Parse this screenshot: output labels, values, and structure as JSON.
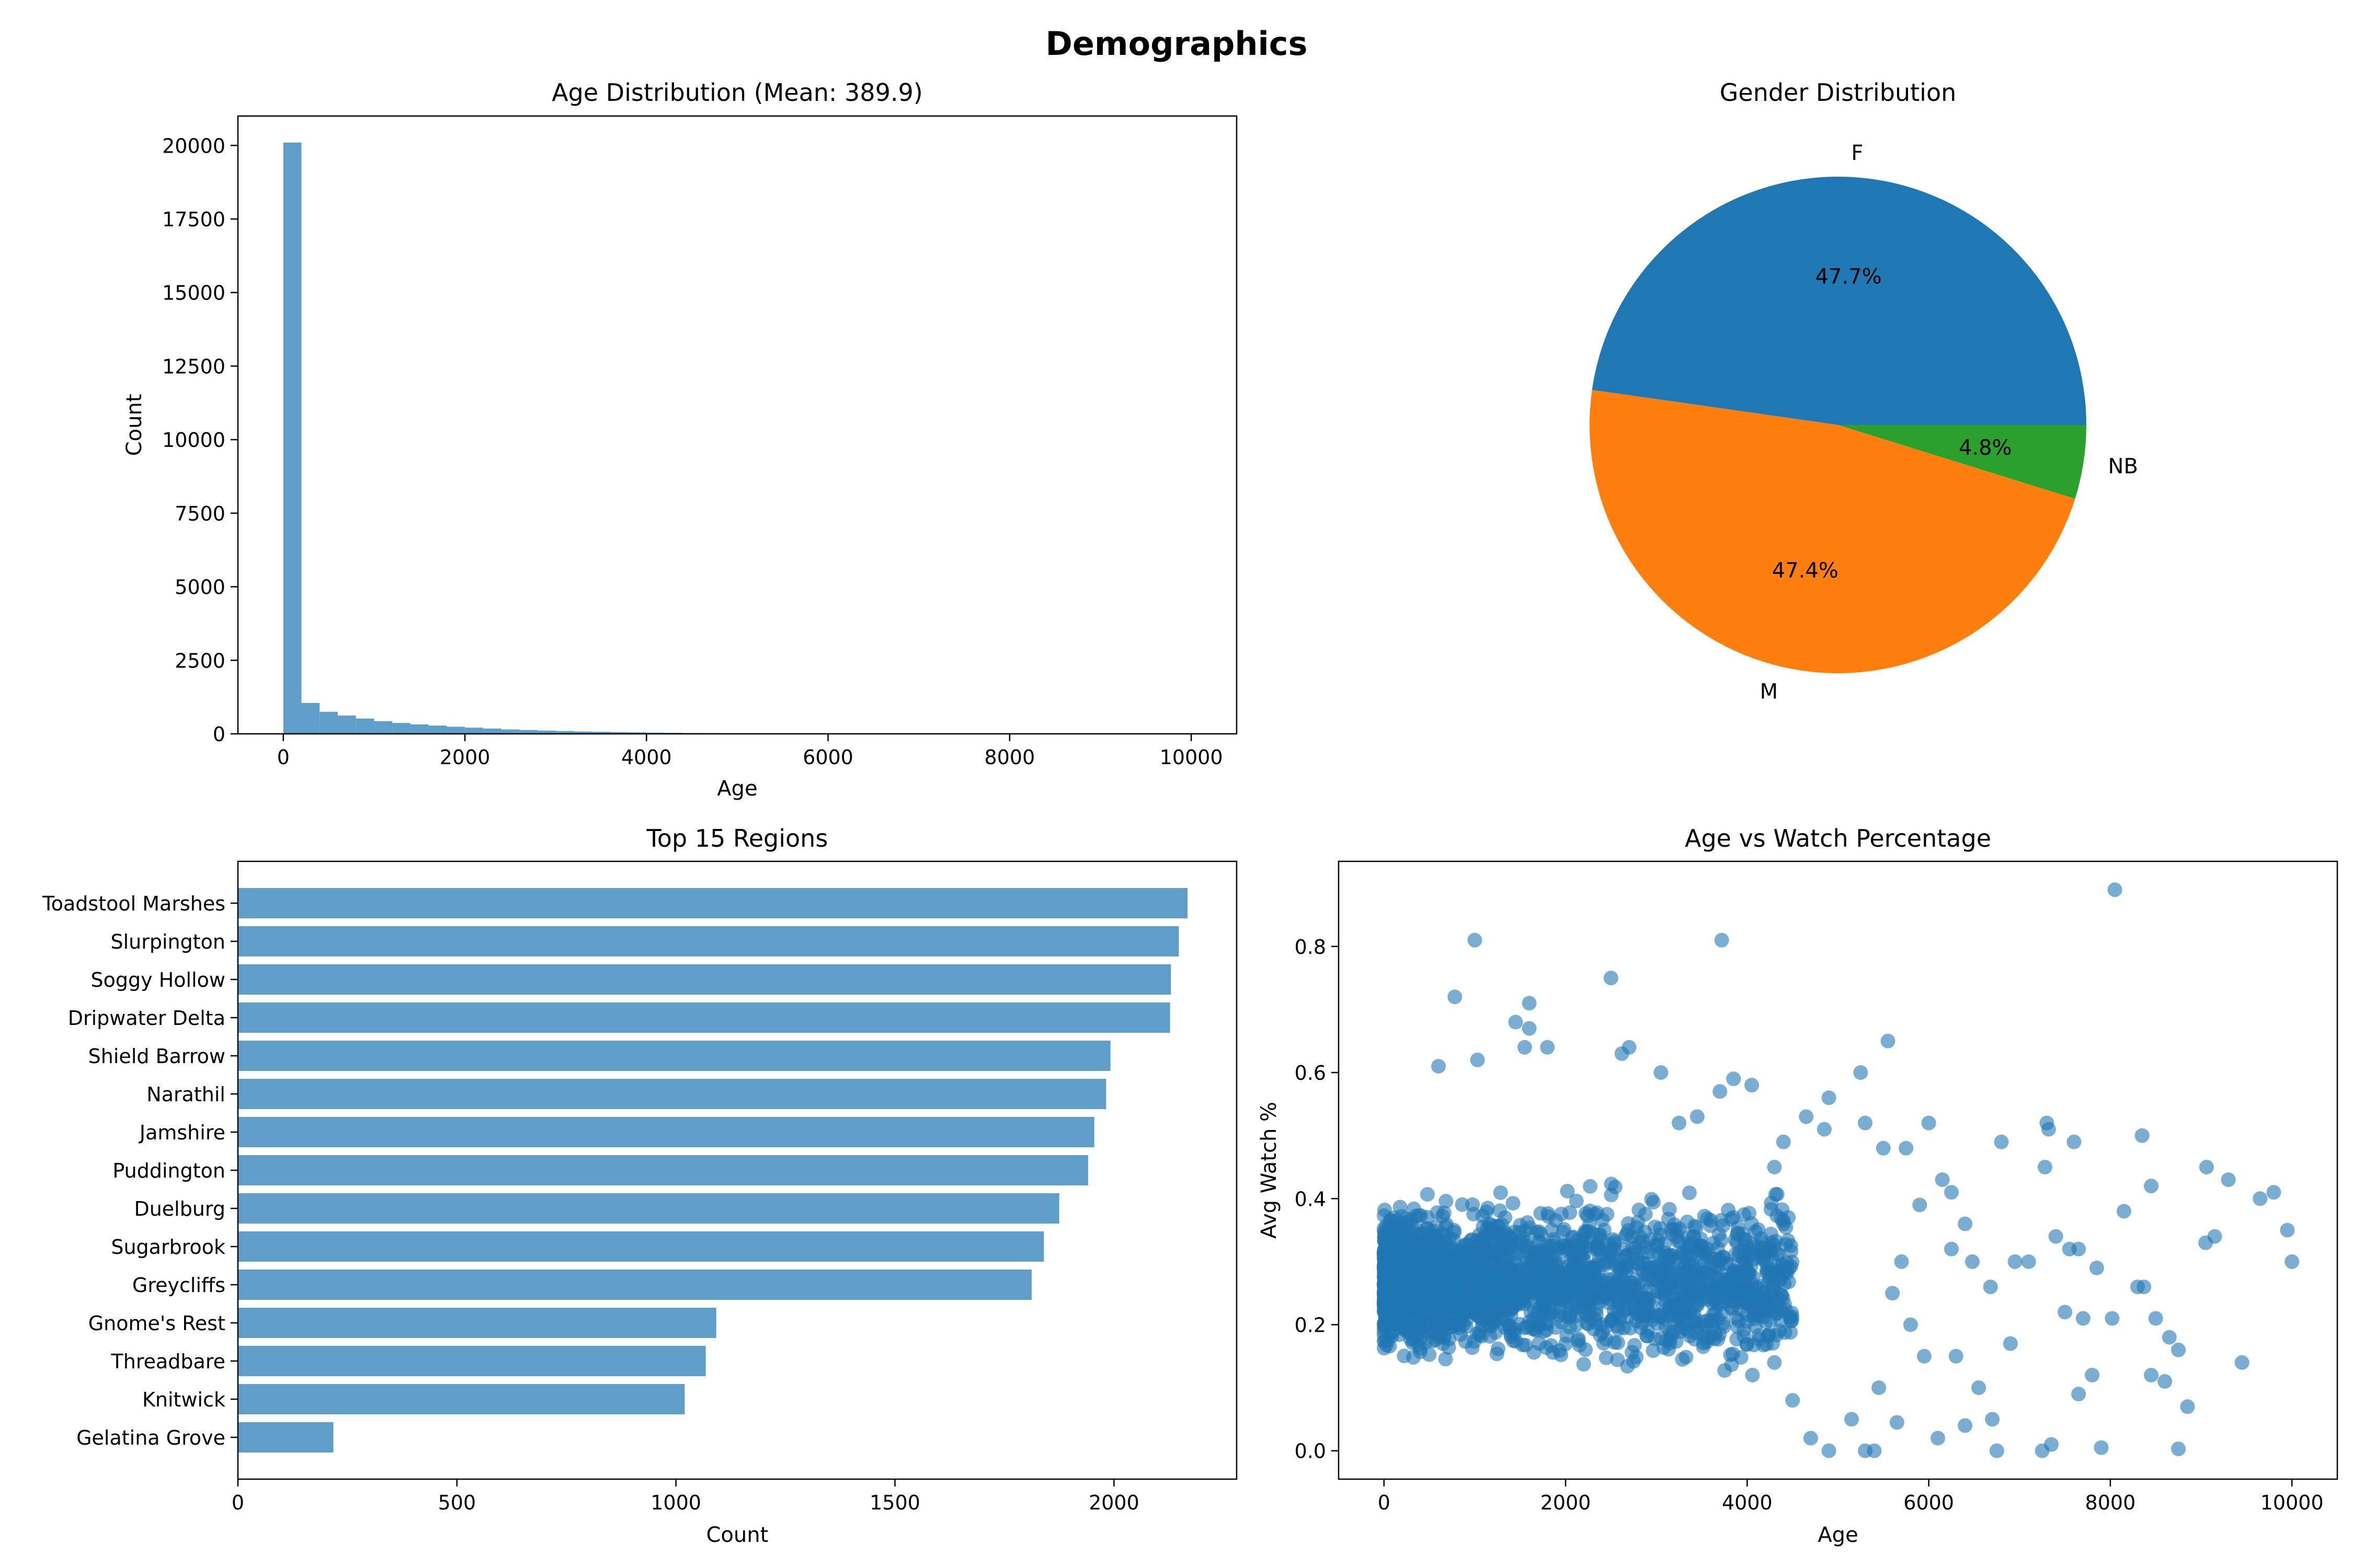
{
  "figure": {
    "title": "Demographics"
  },
  "chart_data": [
    {
      "type": "bar",
      "subtype": "histogram",
      "title": "Age Distribution (Mean: 389.9)",
      "xlabel": "Age",
      "ylabel": "Count",
      "xlim": [
        -500,
        10500
      ],
      "ylim": [
        0,
        21000
      ],
      "xticks": [
        0,
        2000,
        4000,
        6000,
        8000,
        10000
      ],
      "yticks": [
        0,
        2500,
        5000,
        7500,
        10000,
        12500,
        15000,
        17500,
        20000
      ],
      "bin_width": 200,
      "bin_start": 0,
      "values": [
        20100,
        1050,
        750,
        620,
        520,
        430,
        370,
        320,
        280,
        240,
        210,
        180,
        150,
        130,
        110,
        95,
        80,
        70,
        60,
        50,
        40,
        34,
        28,
        24,
        20,
        16,
        14,
        12,
        10,
        9,
        8,
        7,
        6,
        5,
        5,
        4,
        4,
        3,
        3,
        3,
        2,
        2,
        2,
        2,
        1,
        1,
        1,
        1,
        1,
        1
      ],
      "color": "#5f9ec9"
    },
    {
      "type": "pie",
      "title": "Gender Distribution",
      "labels": [
        "F",
        "M",
        "NB"
      ],
      "values": [
        47.7,
        47.4,
        4.8
      ],
      "pct_labels": [
        "47.7%",
        "47.4%",
        "4.8%"
      ],
      "colors": [
        "#1f77b4",
        "#ff7f0e",
        "#2ca02c"
      ]
    },
    {
      "type": "bar",
      "orientation": "horizontal",
      "title": "Top 15 Regions",
      "xlabel": "Count",
      "ylabel": "",
      "xlim": [
        0,
        2280
      ],
      "xticks": [
        0,
        500,
        1000,
        1500,
        2000
      ],
      "categories": [
        "Toadstool Marshes",
        "Slurpington",
        "Soggy Hollow",
        "Dripwater Delta",
        "Shield Barrow",
        "Narathil",
        "Jamshire",
        "Puddington",
        "Duelburg",
        "Sugarbrook",
        "Greycliffs",
        "Gnome's Rest",
        "Threadbare",
        "Knitwick",
        "Gelatina Grove"
      ],
      "values": [
        2168,
        2148,
        2130,
        2128,
        1992,
        1982,
        1955,
        1941,
        1875,
        1840,
        1812,
        1092,
        1068,
        1020,
        218
      ],
      "color": "#5f9ec9"
    },
    {
      "type": "scatter",
      "title": "Age vs Watch Percentage",
      "xlabel": "Age",
      "ylabel": "Avg Watch %",
      "xlim": [
        -500,
        10500
      ],
      "ylim": [
        -0.045,
        0.935
      ],
      "xticks": [
        0,
        2000,
        4000,
        6000,
        8000,
        10000
      ],
      "yticks": [
        0.0,
        0.2,
        0.4,
        0.6,
        0.8
      ],
      "ytick_labels": [
        "0.0",
        "0.2",
        "0.4",
        "0.6",
        "0.8"
      ],
      "points": [
        [
          8050,
          0.89
        ],
        [
          1000,
          0.81
        ],
        [
          3720,
          0.81
        ],
        [
          2500,
          0.75
        ],
        [
          780,
          0.72
        ],
        [
          1600,
          0.71
        ],
        [
          1450,
          0.68
        ],
        [
          1600,
          0.67
        ],
        [
          2700,
          0.64
        ],
        [
          2620,
          0.63
        ],
        [
          5550,
          0.65
        ],
        [
          1800,
          0.64
        ],
        [
          600,
          0.61
        ],
        [
          1550,
          0.64
        ],
        [
          1030,
          0.62
        ],
        [
          3050,
          0.6
        ],
        [
          5250,
          0.6
        ],
        [
          6000,
          0.52
        ],
        [
          7300,
          0.52
        ],
        [
          7320,
          0.51
        ],
        [
          8350,
          0.5
        ],
        [
          7600,
          0.49
        ],
        [
          6800,
          0.49
        ],
        [
          9060,
          0.45
        ],
        [
          7280,
          0.45
        ],
        [
          9300,
          0.43
        ],
        [
          8450,
          0.42
        ],
        [
          9800,
          0.41
        ],
        [
          9650,
          0.4
        ],
        [
          8150,
          0.38
        ],
        [
          9950,
          0.35
        ],
        [
          7400,
          0.34
        ],
        [
          9150,
          0.34
        ],
        [
          9050,
          0.33
        ],
        [
          7650,
          0.32
        ],
        [
          7550,
          0.32
        ],
        [
          10000,
          0.3
        ],
        [
          7850,
          0.29
        ],
        [
          8300,
          0.26
        ],
        [
          8370,
          0.26
        ],
        [
          7700,
          0.21
        ],
        [
          7500,
          0.22
        ],
        [
          8020,
          0.21
        ],
        [
          8500,
          0.21
        ],
        [
          8650,
          0.18
        ],
        [
          8750,
          0.16
        ],
        [
          9450,
          0.14
        ],
        [
          7800,
          0.12
        ],
        [
          8450,
          0.12
        ],
        [
          8600,
          0.11
        ],
        [
          7650,
          0.09
        ],
        [
          8850,
          0.07
        ],
        [
          7350,
          0.01
        ],
        [
          7900,
          0.005
        ],
        [
          8750,
          0.003
        ],
        [
          7250,
          0.0
        ],
        [
          6750,
          0.0
        ],
        [
          5650,
          0.045
        ],
        [
          5300,
          0.0
        ],
        [
          5400,
          0.0
        ],
        [
          4900,
          0.0
        ],
        [
          6100,
          0.02
        ],
        [
          6400,
          0.04
        ],
        [
          6550,
          0.1
        ],
        [
          6700,
          0.05
        ],
        [
          6300,
          0.15
        ],
        [
          6250,
          0.32
        ],
        [
          6480,
          0.3
        ],
        [
          6680,
          0.26
        ],
        [
          6900,
          0.17
        ],
        [
          6950,
          0.3
        ],
        [
          7100,
          0.3
        ],
        [
          6400,
          0.36
        ],
        [
          6250,
          0.41
        ],
        [
          6150,
          0.43
        ],
        [
          5900,
          0.39
        ],
        [
          5750,
          0.48
        ],
        [
          5500,
          0.48
        ],
        [
          5300,
          0.52
        ],
        [
          4900,
          0.56
        ],
        [
          4850,
          0.51
        ],
        [
          4400,
          0.49
        ],
        [
          4300,
          0.45
        ],
        [
          4650,
          0.53
        ],
        [
          3850,
          0.59
        ],
        [
          4050,
          0.58
        ],
        [
          3700,
          0.57
        ],
        [
          3450,
          0.53
        ],
        [
          3250,
          0.52
        ],
        [
          5700,
          0.3
        ],
        [
          5600,
          0.25
        ],
        [
          5800,
          0.2
        ],
        [
          5950,
          0.15
        ],
        [
          5450,
          0.1
        ],
        [
          5150,
          0.05
        ],
        [
          4700,
          0.02
        ],
        [
          4500,
          0.08
        ],
        [
          4300,
          0.14
        ]
      ],
      "dense_cluster": {
        "x_range": [
          0,
          4500
        ],
        "y_range": [
          0.0,
          0.5
        ],
        "center_y": 0.27,
        "count": 2400
      },
      "color": "#1f77b4"
    }
  ]
}
